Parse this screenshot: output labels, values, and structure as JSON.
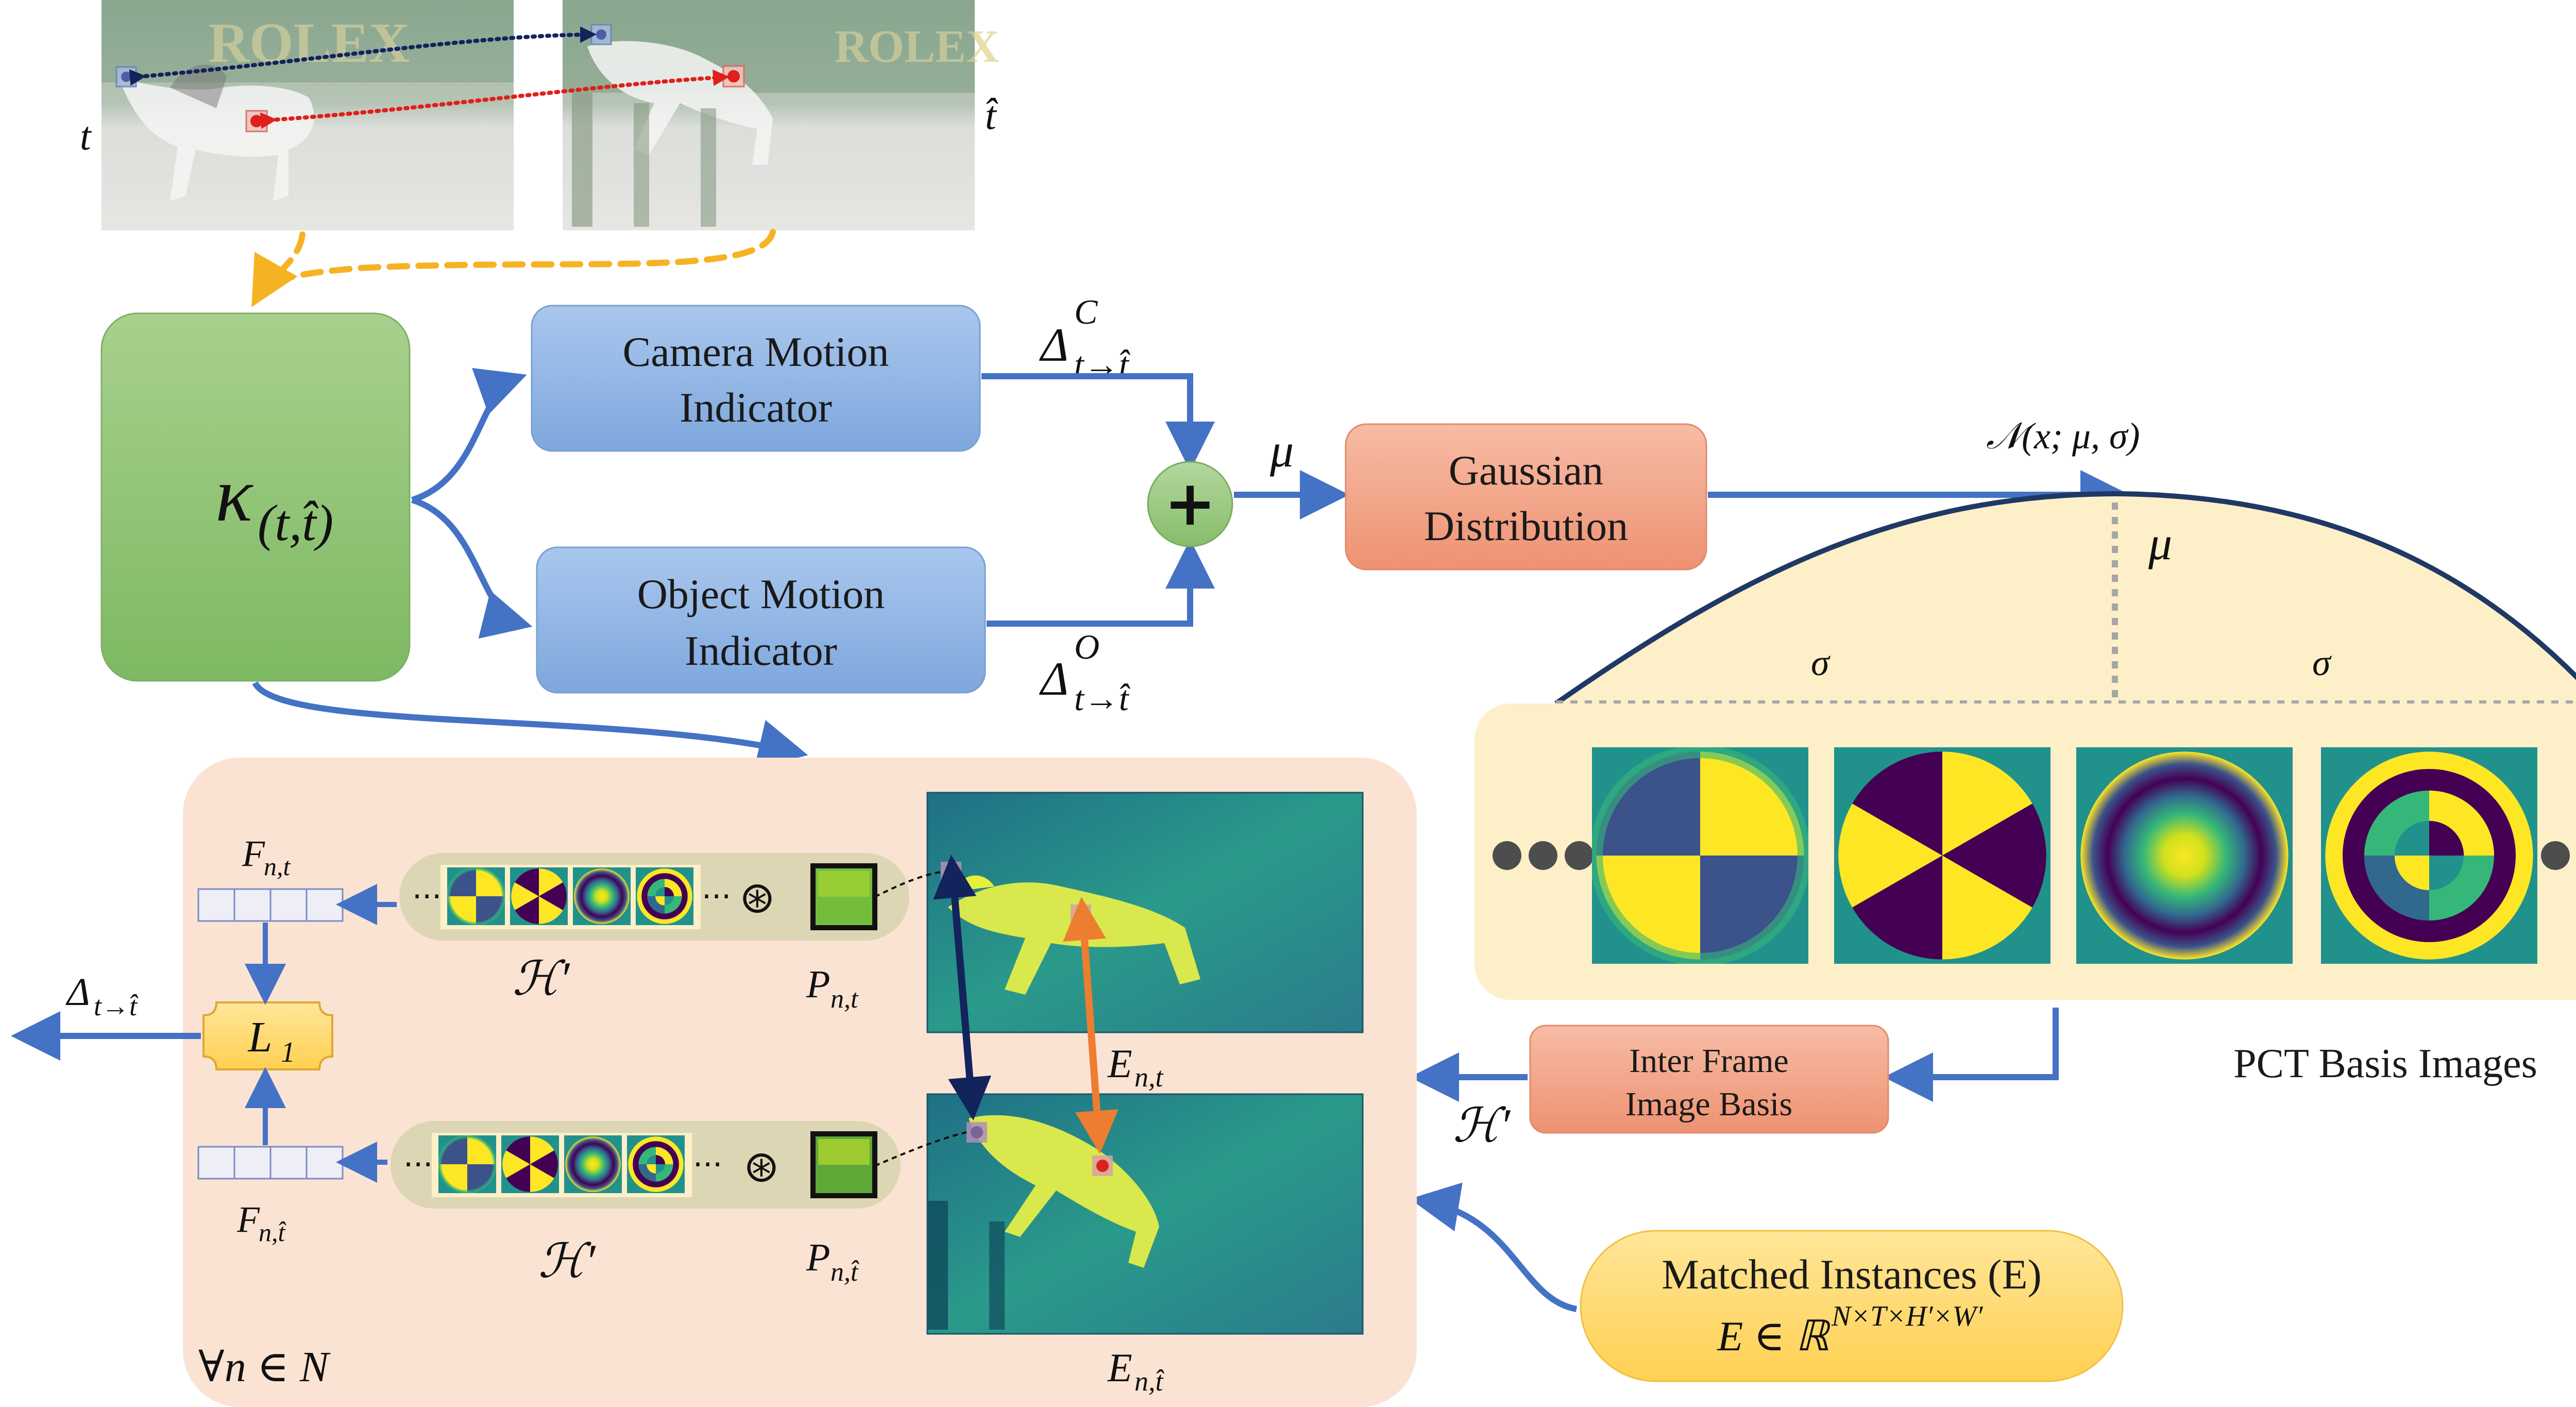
{
  "frames": {
    "source_label": "t",
    "target_label": "t̂",
    "banner_text": "ROLEX"
  },
  "kappa": {
    "symbol": "κ",
    "subscript": "(t,t̂)"
  },
  "camera_box": {
    "line1": "Camera Motion",
    "line2": "Indicator"
  },
  "object_box": {
    "line1": "Object Motion",
    "line2": "Indicator"
  },
  "delta_camera": {
    "symbol": "Δ",
    "sup": "C",
    "sub": "t→t̂"
  },
  "delta_object": {
    "symbol": "Δ",
    "sup": "O",
    "sub": "t→t̂"
  },
  "sum_symbol": "+",
  "mu_label": "μ",
  "gaussian_box": {
    "line1": "Gaussian",
    "line2": "Distribution"
  },
  "normal_label": "𝒩(x; μ, σ)",
  "curve_mu": "μ",
  "sigma_left": "σ",
  "sigma_right": "σ",
  "pct_title": "PCT Basis Images",
  "inter_frame_box": {
    "line1": "Inter Frame",
    "line2": "Image Basis"
  },
  "h_prime_out": "ℋ′",
  "matched_box": {
    "line1": "Matched Instances  (E)",
    "line2": "E ∈ ℝ",
    "line2_sup": "N×T×H′×W′"
  },
  "loop_panel": {
    "quantifier": "∀n ∈ N",
    "top": {
      "feature_label": "F",
      "feature_sub": "n,t",
      "basis_label": "ℋ′",
      "conv_symbol": "⊛",
      "patch_label": "P",
      "patch_sub": "n,t",
      "embedding_label": "E",
      "embedding_sub": "n,t"
    },
    "bottom": {
      "feature_label": "F",
      "feature_sub": "n,t̂",
      "basis_label": "ℋ′",
      "conv_symbol": "⊛",
      "patch_label": "P",
      "patch_sub": "n,t̂",
      "embedding_label": "E",
      "embedding_sub": "n,t̂"
    },
    "loss": {
      "symbol": "L",
      "sub": "1"
    },
    "output_delta": {
      "symbol": "Δ",
      "sub": "t→t̂"
    }
  },
  "colors": {
    "arrow_blue": "#4472c4",
    "kappa_green": "#8fc57a",
    "indicator_blue": "#8fb4e3",
    "gaussian_orange": "#f2a48a",
    "panel_peach": "#fbe3d4",
    "pct_cream": "#fdefc8",
    "loss_yellow": "#ffd966",
    "dashed_yellow": "#f5b324",
    "viridis_purple": "#440154",
    "viridis_yellow": "#fde725",
    "viridis_teal": "#21918c"
  }
}
